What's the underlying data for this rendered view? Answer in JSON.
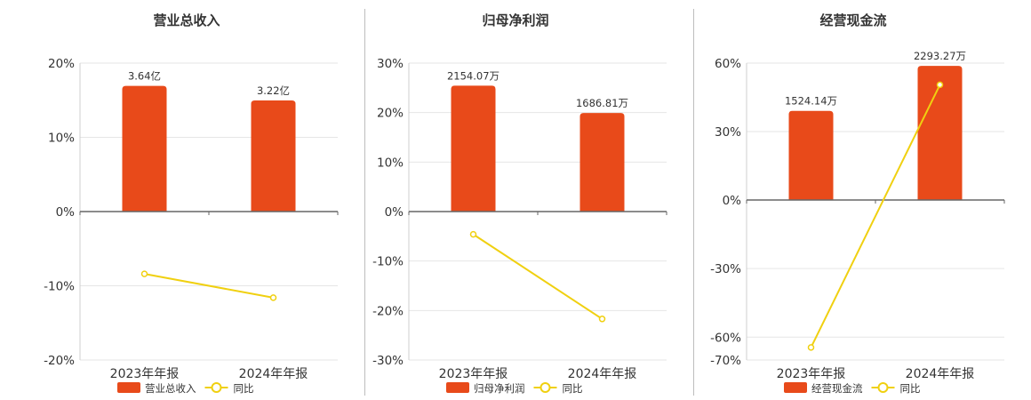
{
  "chart_data": [
    {
      "type": "bar",
      "title": "营业总收入",
      "categories": [
        "2023年年报",
        "2024年年报"
      ],
      "bar_labels": [
        "3.64亿",
        "3.22亿"
      ],
      "series": [
        {
          "name": "营业总收入",
          "type": "bar",
          "axis": "right",
          "values": [
            3.64,
            3.22
          ],
          "unit": "亿"
        },
        {
          "name": "同比",
          "type": "line",
          "axis": "left",
          "values": [
            -8.4,
            -11.6
          ],
          "unit": "%"
        }
      ],
      "ylim": [
        -20,
        20
      ],
      "yticks": [
        20,
        10,
        0,
        -10,
        -20
      ],
      "ytick_labels": [
        "20%",
        "10%",
        "0%",
        "-10%",
        "-20%"
      ],
      "bar_axis_max": 4.3
    },
    {
      "type": "bar",
      "title": "归母净利润",
      "categories": [
        "2023年年报",
        "2024年年报"
      ],
      "bar_labels": [
        "2154.07万",
        "1686.81万"
      ],
      "series": [
        {
          "name": "归母净利润",
          "type": "bar",
          "axis": "right",
          "values": [
            2154.07,
            1686.81
          ],
          "unit": "万"
        },
        {
          "name": "同比",
          "type": "line",
          "axis": "left",
          "values": [
            -4.6,
            -21.7
          ],
          "unit": "%"
        }
      ],
      "ylim": [
        -30,
        30
      ],
      "yticks": [
        30,
        20,
        10,
        0,
        -10,
        -20,
        -30
      ],
      "ytick_labels": [
        "30%",
        "20%",
        "10%",
        "0%",
        "-10%",
        "-20%",
        "-30%"
      ],
      "bar_axis_max": 2540
    },
    {
      "type": "bar",
      "title": "经营现金流",
      "categories": [
        "2023年年报",
        "2024年年报"
      ],
      "bar_labels": [
        "1524.14万",
        "2293.27万"
      ],
      "series": [
        {
          "name": "经营现金流",
          "type": "bar",
          "axis": "right",
          "values": [
            1524.14,
            2293.27
          ],
          "unit": "万"
        },
        {
          "name": "同比",
          "type": "line",
          "axis": "left",
          "values": [
            -64.5,
            50.5
          ],
          "unit": "%"
        }
      ],
      "ylim": [
        -70,
        60
      ],
      "yticks": [
        60,
        30,
        0,
        -30,
        -60,
        -70
      ],
      "ytick_labels": [
        "60%",
        "30%",
        "0%",
        "-30%",
        "-60%",
        "-70%"
      ],
      "bar_axis_max": 2340
    }
  ],
  "colors": {
    "bar": "#e84a1a",
    "line": "#f0d010",
    "axis": "#666666",
    "grid": "#e6e6e6"
  }
}
